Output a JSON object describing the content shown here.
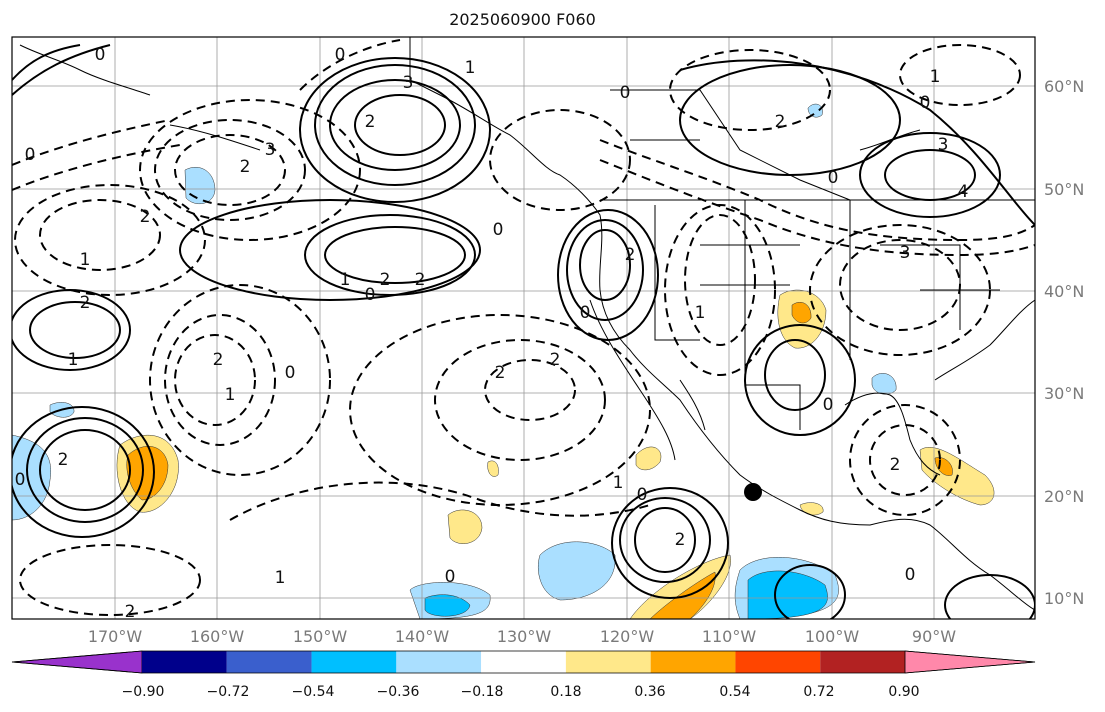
{
  "title": "2025060900 F060",
  "lat_labels": [
    "60°N",
    "50°N",
    "40°N",
    "30°N",
    "20°N",
    "10°N"
  ],
  "lon_labels": [
    "170°W",
    "160°W",
    "150°W",
    "140°W",
    "130°W",
    "120°W",
    "110°W",
    "100°W",
    "90°W"
  ],
  "colorbar": {
    "tick_labels": [
      "−0.90",
      "−0.72",
      "−0.54",
      "−0.36",
      "−0.18",
      "0.18",
      "0.36",
      "0.54",
      "0.72",
      "0.90"
    ],
    "colors": [
      "#9932cc",
      "#00008b",
      "#3a5fcd",
      "#00bfff",
      "#aadfff",
      "#ffffff",
      "#ffe88a",
      "#ffa500",
      "#ff4500",
      "#b22222",
      "#ff88aa"
    ]
  },
  "contour_labels": [
    "0",
    "1",
    "2",
    "3",
    "0",
    "2",
    "3",
    "0",
    "2",
    "1",
    "2",
    "1",
    "2",
    "0",
    "2",
    "2",
    "0",
    "1",
    "2",
    "0",
    "1",
    "2",
    "2",
    "0",
    "3",
    "4",
    "0",
    "1",
    "3",
    "0",
    "2",
    "0",
    "1",
    "2",
    "0",
    "1",
    "2",
    "0",
    "0",
    "1",
    "2",
    "0",
    "2",
    "0"
  ]
}
